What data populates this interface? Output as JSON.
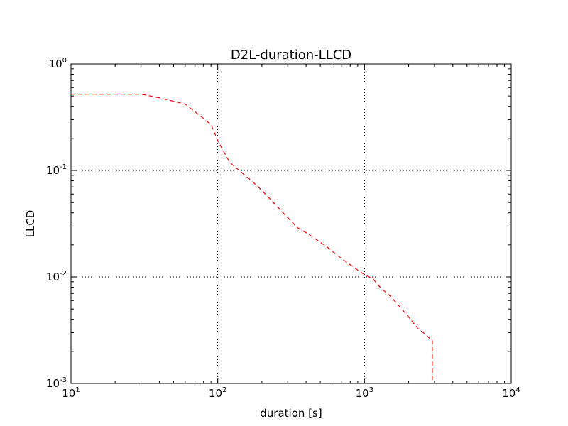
{
  "chart_data": {
    "type": "line",
    "title": "D2L-duration-LLCD",
    "xlabel": "duration [s]",
    "ylabel": "LLCD",
    "x_scale": "log",
    "y_scale": "log",
    "xlim": [
      10,
      10000
    ],
    "ylim": [
      0.001,
      1
    ],
    "grid": true,
    "x_ticks": [
      {
        "value": 10,
        "base": "10",
        "exp": "1"
      },
      {
        "value": 100,
        "base": "10",
        "exp": "2"
      },
      {
        "value": 1000,
        "base": "10",
        "exp": "3"
      },
      {
        "value": 10000,
        "base": "10",
        "exp": "4"
      }
    ],
    "y_ticks": [
      {
        "value": 1,
        "base": "10",
        "exp": "0"
      },
      {
        "value": 0.1,
        "base": "10",
        "exp": "-1"
      },
      {
        "value": 0.01,
        "base": "10",
        "exp": "-2"
      },
      {
        "value": 0.001,
        "base": "10",
        "exp": "-3"
      }
    ],
    "series": [
      {
        "color": "#ff0000",
        "style": "dashed",
        "x": [
          10,
          30,
          40,
          60,
          75,
          90,
          100,
          110,
          120,
          140,
          170,
          200,
          250,
          300,
          350,
          420,
          480,
          560,
          650,
          800,
          950,
          1150,
          1300,
          1500,
          1750,
          2000,
          2300,
          2600,
          2900,
          2900,
          2900
        ],
        "y": [
          0.52,
          0.52,
          0.48,
          0.42,
          0.33,
          0.27,
          0.19,
          0.15,
          0.12,
          0.1,
          0.08,
          0.065,
          0.047,
          0.036,
          0.029,
          0.025,
          0.022,
          0.019,
          0.016,
          0.013,
          0.011,
          0.0095,
          0.0078,
          0.0066,
          0.0052,
          0.0042,
          0.0033,
          0.0029,
          0.0025,
          0.0015,
          0.001
        ]
      }
    ]
  }
}
